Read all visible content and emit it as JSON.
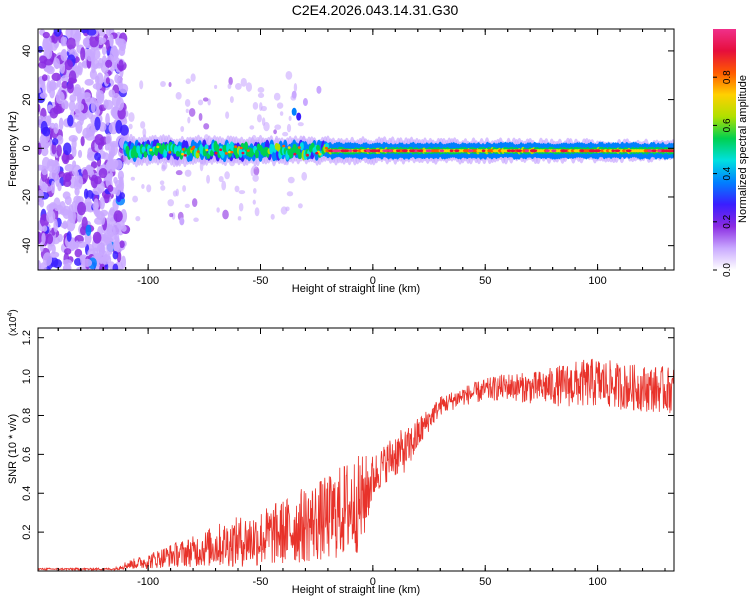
{
  "title": "C2E4.2026.043.14.31.G30",
  "colors": {
    "snr_line": "#e8322a",
    "axis": "#000000"
  },
  "chart_data": [
    {
      "type": "heatmap",
      "xlabel": "Height of straight line (km)",
      "ylabel": "Frequency (Hz)",
      "xlim": [
        -149,
        134
      ],
      "ylim": [
        -50,
        49
      ],
      "xticks": [
        -100,
        -50,
        0,
        50,
        100
      ],
      "yticks": [
        -40,
        -20,
        0,
        20,
        40
      ],
      "colorbar": {
        "label": "Normalized spectral amplitude",
        "range": [
          0,
          1
        ],
        "ticks": [
          "0.0",
          "0.2",
          "0.4",
          "0.6",
          "0.8"
        ],
        "colormap": [
          "#ffffff",
          "#c9a8ff",
          "#8a2be2",
          "#3a1eff",
          "#0080ff",
          "#00e0e0",
          "#00d050",
          "#b0e000",
          "#ffd000",
          "#ff5a00",
          "#e60e3c",
          "#f0308a"
        ]
      },
      "features": {
        "noise_region_x": [
          -149,
          -110
        ],
        "signal_center_freq_hz": -1,
        "signal_start_x": -110,
        "strong_band_start_x": -20
      }
    },
    {
      "type": "line",
      "xlabel": "Height of straight line (km)",
      "ylabel": "SNR (10 * v/v)",
      "scale_label": "(x10",
      "scale_exp": "4",
      "scale_close": ")",
      "xlim": [
        -149,
        134
      ],
      "ylim": [
        0,
        1.25
      ],
      "xticks": [
        -100,
        -50,
        0,
        50,
        100
      ],
      "yticks": [
        0.2,
        0.4,
        0.6,
        0.8,
        1.0,
        1.2
      ],
      "ytick_labels": [
        "0.2",
        "0.4",
        "0.6",
        "0.8",
        "1.0",
        "1.2"
      ],
      "series": [
        {
          "name": "SNR",
          "x": [
            -149,
            -130,
            -115,
            -110,
            -100,
            -90,
            -80,
            -70,
            -60,
            -50,
            -40,
            -30,
            -20,
            -15,
            -10,
            -5,
            0,
            5,
            10,
            15,
            20,
            25,
            30,
            40,
            50,
            60,
            70,
            80,
            90,
            100,
            110,
            120,
            134
          ],
          "values": [
            0.01,
            0.01,
            0.01,
            0.03,
            0.05,
            0.08,
            0.1,
            0.13,
            0.15,
            0.17,
            0.2,
            0.24,
            0.27,
            0.3,
            0.33,
            0.35,
            0.48,
            0.55,
            0.6,
            0.62,
            0.7,
            0.78,
            0.85,
            0.9,
            0.93,
            0.95,
            0.94,
            0.95,
            0.96,
            0.97,
            0.95,
            0.94,
            0.93
          ],
          "noise_amp": [
            0.005,
            0.005,
            0.005,
            0.02,
            0.04,
            0.06,
            0.08,
            0.11,
            0.13,
            0.15,
            0.17,
            0.2,
            0.22,
            0.24,
            0.26,
            0.25,
            0.12,
            0.1,
            0.12,
            0.11,
            0.09,
            0.06,
            0.05,
            0.05,
            0.06,
            0.07,
            0.08,
            0.1,
            0.12,
            0.13,
            0.12,
            0.12,
            0.12
          ]
        }
      ]
    }
  ]
}
